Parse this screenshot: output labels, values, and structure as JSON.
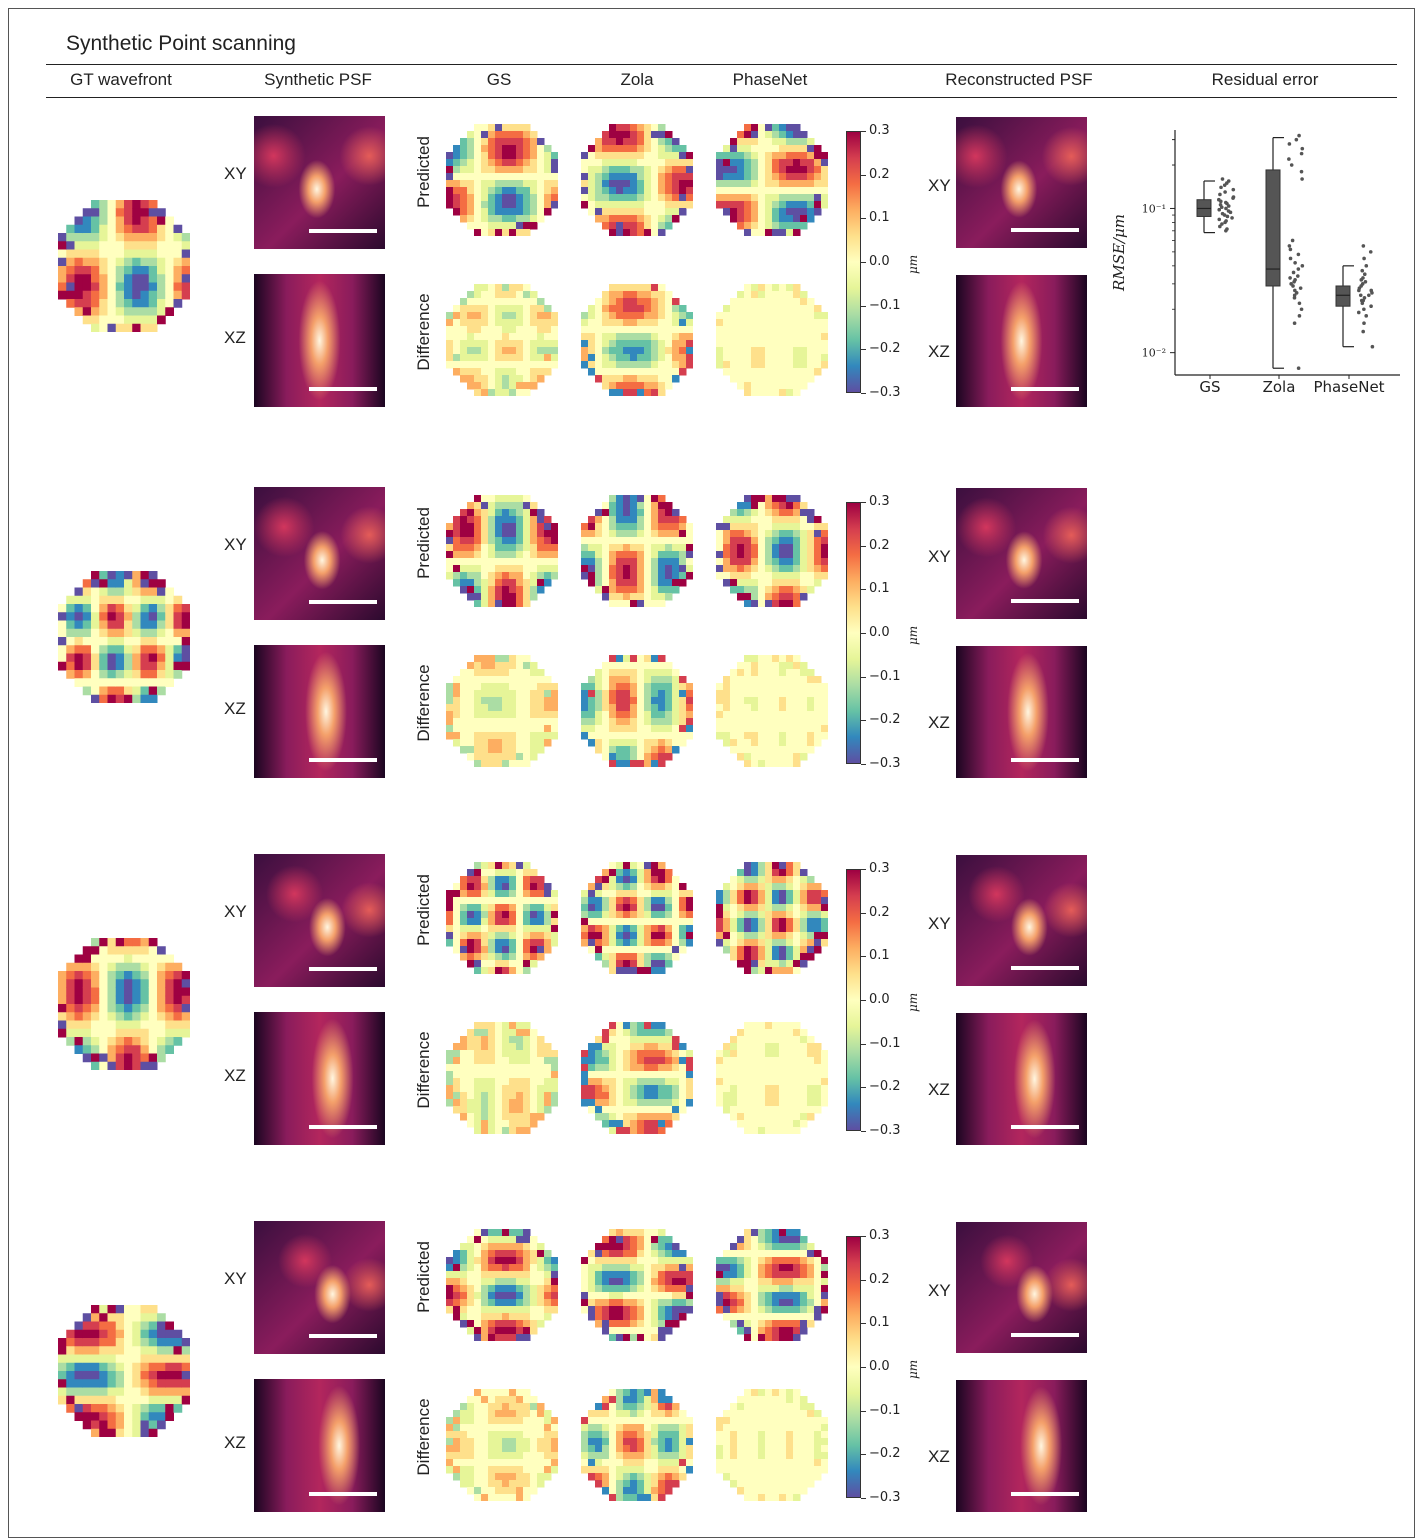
{
  "title": "Synthetic Point scanning",
  "columns": [
    "GT wavefront",
    "Synthetic PSF",
    "GS",
    "Zola",
    "PhaseNet",
    "Reconstructed PSF",
    "Residual error"
  ],
  "row_labels": {
    "xy": "XY",
    "xz": "XZ",
    "predicted": "Predicted",
    "difference": "Difference"
  },
  "colorbar": {
    "ticks": [
      "0.3",
      "0.2",
      "0.1",
      "0.0",
      "−0.1",
      "−0.2",
      "−0.3"
    ],
    "unit": "μm"
  },
  "colors": {
    "colormap": "Spectral",
    "psf_colormap": "magma",
    "box": "#555555",
    "points": "#555555"
  },
  "chart_data": {
    "type": "box",
    "categories": [
      "GS",
      "Zola",
      "PhaseNet"
    ],
    "ylabel": "RMSE/μm",
    "yscale": "log",
    "ylim": [
      0.007,
      0.35
    ],
    "yticks": [
      "10⁻¹",
      "10⁻²"
    ],
    "boxes": [
      {
        "name": "GS",
        "q1": 0.088,
        "median": 0.1,
        "q3": 0.115,
        "whisker_low": 0.068,
        "whisker_high": 0.155
      },
      {
        "name": "Zola",
        "q1": 0.029,
        "median": 0.038,
        "q3": 0.185,
        "whisker_low": 0.0078,
        "whisker_high": 0.31
      },
      {
        "name": "PhaseNet",
        "q1": 0.021,
        "median": 0.025,
        "q3": 0.029,
        "whisker_low": 0.011,
        "whisker_high": 0.04
      }
    ],
    "points": {
      "GS": [
        0.07,
        0.072,
        0.075,
        0.078,
        0.08,
        0.082,
        0.084,
        0.086,
        0.088,
        0.09,
        0.092,
        0.094,
        0.096,
        0.098,
        0.1,
        0.102,
        0.104,
        0.106,
        0.108,
        0.11,
        0.112,
        0.115,
        0.118,
        0.12,
        0.125,
        0.13,
        0.135,
        0.14,
        0.145,
        0.15,
        0.155,
        0.16
      ],
      "Zola": [
        0.0078,
        0.016,
        0.018,
        0.02,
        0.022,
        0.024,
        0.025,
        0.026,
        0.027,
        0.028,
        0.029,
        0.03,
        0.031,
        0.032,
        0.033,
        0.034,
        0.036,
        0.038,
        0.04,
        0.042,
        0.045,
        0.048,
        0.052,
        0.055,
        0.06,
        0.16,
        0.18,
        0.2,
        0.22,
        0.24,
        0.26,
        0.28,
        0.3,
        0.32
      ],
      "PhaseNet": [
        0.011,
        0.014,
        0.016,
        0.018,
        0.019,
        0.02,
        0.021,
        0.022,
        0.023,
        0.023,
        0.024,
        0.025,
        0.025,
        0.026,
        0.027,
        0.027,
        0.028,
        0.029,
        0.03,
        0.031,
        0.032,
        0.033,
        0.035,
        0.037,
        0.04,
        0.045,
        0.05,
        0.055
      ]
    }
  }
}
